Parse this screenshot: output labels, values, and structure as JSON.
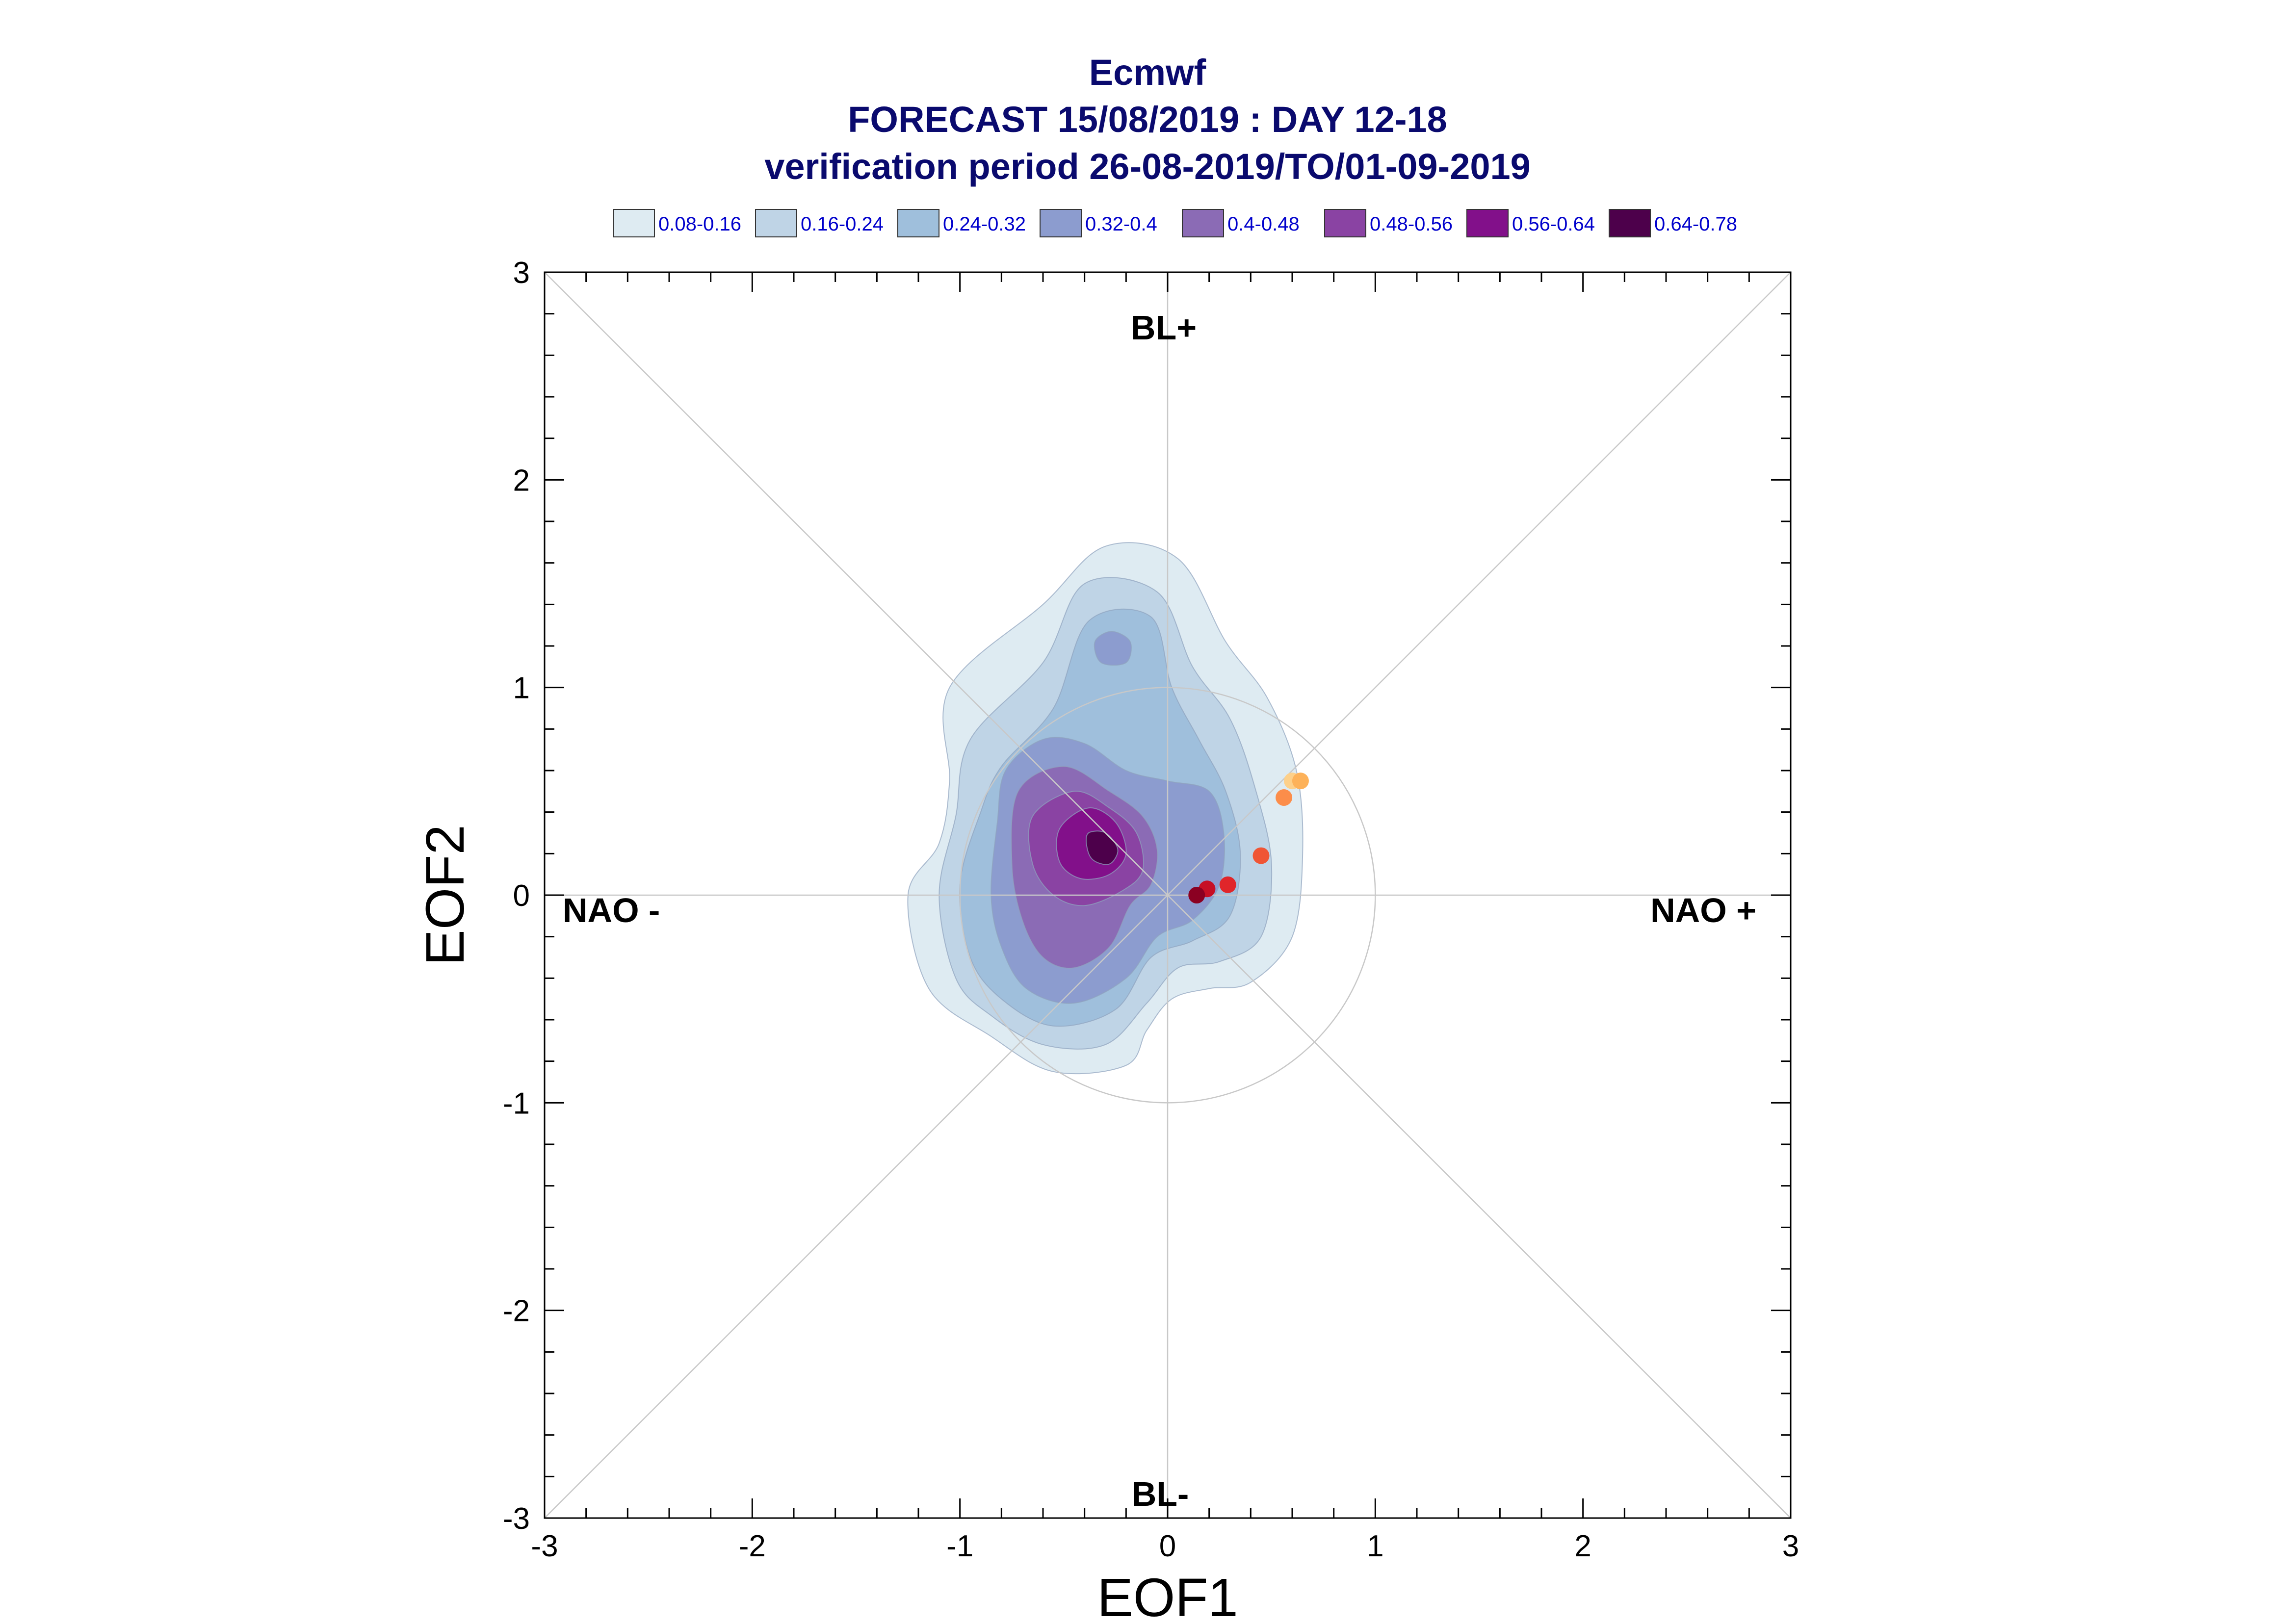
{
  "chart_data": {
    "type": "contour-scatter",
    "title_lines": [
      "Ecmwf",
      "FORECAST 15/08/2019 : DAY 12-18",
      "verification period 26-08-2019/TO/01-09-2019"
    ],
    "xlabel": "EOF1",
    "ylabel": "EOF2",
    "xlim": [
      -3,
      3
    ],
    "ylim": [
      -3,
      3
    ],
    "xticks": [
      "-3",
      "-2",
      "-1",
      "0",
      "1",
      "2",
      "3"
    ],
    "yticks": [
      "-3",
      "-2",
      "-1",
      "0",
      "1",
      "2",
      "3"
    ],
    "region_labels": {
      "top": "BL+",
      "bottom": "BL-",
      "left": "NAO -",
      "right": "NAO +"
    },
    "reference_circle_radius": 1,
    "legend": [
      {
        "label": "0.08-0.16",
        "color": "#deebf2"
      },
      {
        "label": "0.16-0.24",
        "color": "#bfd4e6"
      },
      {
        "label": "0.24-0.32",
        "color": "#9fbfdc"
      },
      {
        "label": "0.32-0.4",
        "color": "#8c9ccf"
      },
      {
        "label": "0.4-0.48",
        "color": "#8b6bb5"
      },
      {
        "label": "0.48-0.56",
        "color": "#8a43a3"
      },
      {
        "label": "0.56-0.64",
        "color": "#82108a"
      },
      {
        "label": "0.64-0.78",
        "color": "#4d004b"
      }
    ],
    "density_levels": [
      {
        "level": "0.08-0.16",
        "points": [
          [
            -1.05,
            1.0
          ],
          [
            -0.6,
            1.4
          ],
          [
            -0.3,
            1.68
          ],
          [
            0.05,
            1.62
          ],
          [
            0.28,
            1.22
          ],
          [
            0.48,
            0.95
          ],
          [
            0.62,
            0.6
          ],
          [
            0.65,
            0.2
          ],
          [
            0.6,
            -0.2
          ],
          [
            0.4,
            -0.42
          ],
          [
            0.2,
            -0.45
          ],
          [
            0.02,
            -0.5
          ],
          [
            -0.1,
            -0.65
          ],
          [
            -0.2,
            -0.82
          ],
          [
            -0.55,
            -0.85
          ],
          [
            -0.85,
            -0.68
          ],
          [
            -1.15,
            -0.45
          ],
          [
            -1.25,
            0.0
          ],
          [
            -1.1,
            0.25
          ],
          [
            -1.05,
            0.55
          ]
        ]
      },
      {
        "level": "0.16-0.24",
        "points": [
          [
            -0.95,
            0.75
          ],
          [
            -0.6,
            1.12
          ],
          [
            -0.4,
            1.5
          ],
          [
            -0.05,
            1.46
          ],
          [
            0.12,
            1.1
          ],
          [
            0.3,
            0.85
          ],
          [
            0.42,
            0.52
          ],
          [
            0.5,
            0.15
          ],
          [
            0.45,
            -0.2
          ],
          [
            0.25,
            -0.32
          ],
          [
            0.05,
            -0.35
          ],
          [
            -0.1,
            -0.52
          ],
          [
            -0.3,
            -0.72
          ],
          [
            -0.6,
            -0.72
          ],
          [
            -0.85,
            -0.58
          ],
          [
            -1.02,
            -0.4
          ],
          [
            -1.1,
            0.0
          ],
          [
            -1.02,
            0.38
          ]
        ]
      },
      {
        "level": "0.24-0.32",
        "points": [
          [
            -0.8,
            0.62
          ],
          [
            -0.55,
            0.9
          ],
          [
            -0.38,
            1.32
          ],
          [
            -0.08,
            1.34
          ],
          [
            0.02,
            1.0
          ],
          [
            0.15,
            0.75
          ],
          [
            0.28,
            0.5
          ],
          [
            0.35,
            0.2
          ],
          [
            0.3,
            -0.1
          ],
          [
            0.12,
            -0.22
          ],
          [
            -0.08,
            -0.3
          ],
          [
            -0.25,
            -0.55
          ],
          [
            -0.55,
            -0.63
          ],
          [
            -0.8,
            -0.5
          ],
          [
            -0.95,
            -0.3
          ],
          [
            -1.0,
            0.05
          ],
          [
            -0.9,
            0.4
          ]
        ]
      },
      {
        "level": "0.32-0.4",
        "points": [
          [
            -0.78,
            0.6
          ],
          [
            -0.6,
            0.75
          ],
          [
            -0.4,
            0.73
          ],
          [
            -0.2,
            0.6
          ],
          [
            0.0,
            0.55
          ],
          [
            0.2,
            0.5
          ],
          [
            0.27,
            0.3
          ],
          [
            0.25,
            0.05
          ],
          [
            0.12,
            -0.12
          ],
          [
            -0.05,
            -0.2
          ],
          [
            -0.2,
            -0.4
          ],
          [
            -0.45,
            -0.52
          ],
          [
            -0.68,
            -0.45
          ],
          [
            -0.8,
            -0.25
          ],
          [
            -0.85,
            0.0
          ],
          [
            -0.82,
            0.35
          ]
        ]
      },
      {
        "level": "0.32-0.4",
        "points": [
          [
            -0.35,
            1.22
          ],
          [
            -0.27,
            1.27
          ],
          [
            -0.18,
            1.22
          ],
          [
            -0.2,
            1.12
          ],
          [
            -0.32,
            1.12
          ]
        ]
      },
      {
        "level": "0.4-0.48",
        "points": [
          [
            -0.72,
            0.5
          ],
          [
            -0.5,
            0.62
          ],
          [
            -0.28,
            0.5
          ],
          [
            -0.12,
            0.38
          ],
          [
            -0.05,
            0.22
          ],
          [
            -0.08,
            0.05
          ],
          [
            -0.18,
            -0.05
          ],
          [
            -0.28,
            -0.25
          ],
          [
            -0.45,
            -0.35
          ],
          [
            -0.6,
            -0.3
          ],
          [
            -0.7,
            -0.12
          ],
          [
            -0.75,
            0.15
          ]
        ]
      },
      {
        "level": "0.48-0.56",
        "points": [
          [
            -0.65,
            0.38
          ],
          [
            -0.45,
            0.5
          ],
          [
            -0.28,
            0.42
          ],
          [
            -0.15,
            0.3
          ],
          [
            -0.12,
            0.12
          ],
          [
            -0.22,
            0.02
          ],
          [
            -0.4,
            -0.05
          ],
          [
            -0.55,
            0.0
          ],
          [
            -0.65,
            0.15
          ]
        ]
      },
      {
        "level": "0.56-0.64",
        "points": [
          [
            -0.52,
            0.32
          ],
          [
            -0.38,
            0.42
          ],
          [
            -0.25,
            0.35
          ],
          [
            -0.2,
            0.2
          ],
          [
            -0.28,
            0.1
          ],
          [
            -0.42,
            0.08
          ],
          [
            -0.52,
            0.16
          ]
        ]
      },
      {
        "level": "0.64-0.78",
        "points": [
          [
            -0.38,
            0.3
          ],
          [
            -0.3,
            0.3
          ],
          [
            -0.24,
            0.22
          ],
          [
            -0.28,
            0.15
          ],
          [
            -0.36,
            0.17
          ],
          [
            -0.39,
            0.24
          ]
        ]
      }
    ],
    "trajectory_points": [
      {
        "x": 0.6,
        "y": 0.55,
        "color": "#fdd08a"
      },
      {
        "x": 0.64,
        "y": 0.55,
        "color": "#fdb25a"
      },
      {
        "x": 0.56,
        "y": 0.47,
        "color": "#fc8d4a"
      },
      {
        "x": 0.45,
        "y": 0.19,
        "color": "#f05535"
      },
      {
        "x": 0.29,
        "y": 0.05,
        "color": "#e0262a"
      },
      {
        "x": 0.19,
        "y": 0.03,
        "color": "#c60f25"
      },
      {
        "x": 0.14,
        "y": 0.0,
        "color": "#8b0022"
      }
    ]
  }
}
